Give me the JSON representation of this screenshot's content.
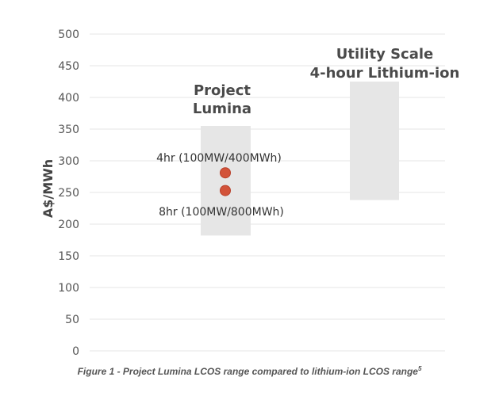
{
  "chart_data": {
    "type": "range",
    "ylabel": "A$/MWh",
    "ylim": [
      0,
      500
    ],
    "yticks": [
      0,
      50,
      100,
      150,
      200,
      250,
      300,
      350,
      400,
      450,
      500
    ],
    "grid": true,
    "ranges": [
      {
        "title_lines": [
          "Project",
          "Lumina"
        ],
        "low": 182,
        "high": 355,
        "points": [
          {
            "label": "4hr (100MW/400MWh)",
            "value": 281
          },
          {
            "label": "8hr (100MW/800MWh)",
            "value": 253
          }
        ]
      },
      {
        "title_lines": [
          "Utility Scale",
          "4-hour Lithium-ion"
        ],
        "low": 238,
        "high": 425,
        "points": []
      }
    ],
    "colors": {
      "range_fill": "#e6e6e6",
      "point_fill": "#d2533a",
      "point_stroke": "#b9402a",
      "grid": "#e6e6e6"
    }
  },
  "caption": {
    "text": "Figure 1 - Project Lumina LCOS range compared to lithium-ion LCOS range",
    "superscript": "5"
  }
}
